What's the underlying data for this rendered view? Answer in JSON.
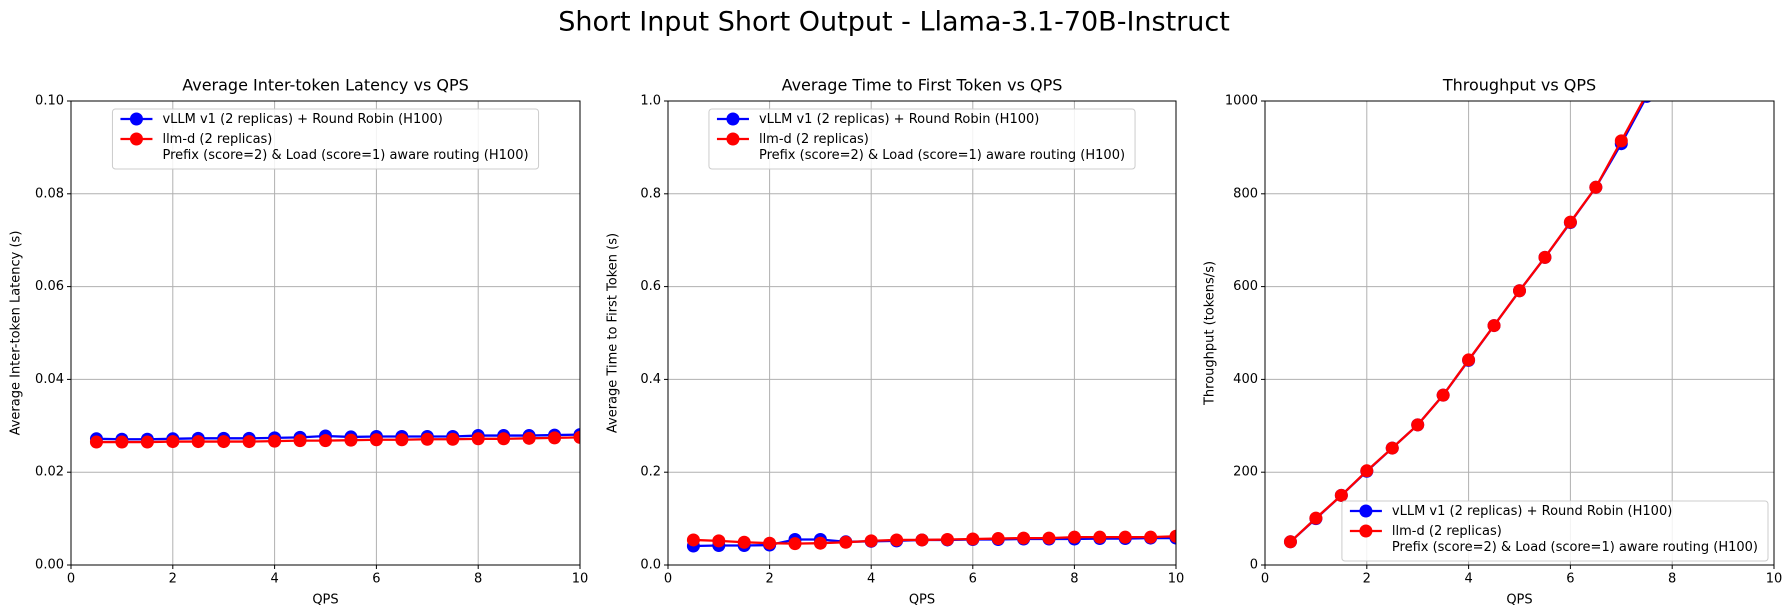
{
  "title": "Short Input Short Output - Llama-3.1-70B-Instruct",
  "chart_data": [
    {
      "type": "line",
      "title": "Average Inter-token Latency vs QPS",
      "x_label": "QPS",
      "y_label": "Average Inter-token Latency (s)",
      "x": [
        0.5,
        1,
        1.5,
        2,
        2.5,
        3,
        3.5,
        4,
        4.5,
        5,
        5.5,
        6,
        6.5,
        7,
        7.5,
        8,
        8.5,
        9,
        9.5,
        10
      ],
      "series": [
        {
          "name": "vLLM v1 (2 replicas) + Round Robin (H100)",
          "color": "#0000ff",
          "values": [
            0.0272,
            0.0271,
            0.0271,
            0.0272,
            0.0273,
            0.0273,
            0.0273,
            0.0274,
            0.0275,
            0.0278,
            0.0276,
            0.0277,
            0.0277,
            0.0277,
            0.0277,
            0.0279,
            0.0279,
            0.0279,
            0.028,
            0.0281
          ]
        },
        {
          "name": "llm-d (2 replicas)\nPrefix (score=2) & Load (score=1) aware routing (H100)",
          "color": "#ff0000",
          "values": [
            0.0265,
            0.0265,
            0.0265,
            0.0266,
            0.0266,
            0.0266,
            0.0266,
            0.0267,
            0.0268,
            0.0268,
            0.0269,
            0.027,
            0.027,
            0.0271,
            0.0271,
            0.0272,
            0.0272,
            0.0273,
            0.0274,
            0.0275
          ]
        }
      ],
      "xlim": [
        0,
        10
      ],
      "ylim": [
        0,
        0.1
      ],
      "xticks": [
        0,
        2,
        4,
        6,
        8,
        10
      ],
      "yticks": [
        {
          "value": 0,
          "label": "0.00"
        },
        0.02,
        0.04,
        0.06,
        0.08,
        {
          "value": 0.1,
          "label": "0.10"
        }
      ],
      "grid": true,
      "legend": "upper center"
    },
    {
      "type": "line",
      "title": "Average Time to First Token vs QPS",
      "x_label": "QPS",
      "y_label": "Average Time to First Token (s)",
      "x": [
        0.5,
        1,
        1.5,
        2,
        2.5,
        3,
        3.5,
        4,
        4.5,
        5,
        5.5,
        6,
        6.5,
        7,
        7.5,
        8,
        8.5,
        9,
        9.5,
        10
      ],
      "series": [
        {
          "name": "vLLM v1 (2 replicas) + Round Robin (H100)",
          "color": "#0000ff",
          "values": [
            0.041,
            0.042,
            0.042,
            0.043,
            0.055,
            0.055,
            0.05,
            0.051,
            0.052,
            0.054,
            0.054,
            0.055,
            0.055,
            0.056,
            0.056,
            0.056,
            0.057,
            0.057,
            0.058,
            0.058
          ]
        },
        {
          "name": "llm-d (2 replicas)\nPrefix (score=2) & Load (score=1) aware routing (H100)",
          "color": "#ff0000",
          "values": [
            0.054,
            0.052,
            0.049,
            0.047,
            0.046,
            0.047,
            0.049,
            0.052,
            0.054,
            0.054,
            0.055,
            0.056,
            0.057,
            0.058,
            0.058,
            0.06,
            0.06,
            0.06,
            0.06,
            0.062
          ]
        }
      ],
      "xlim": [
        0,
        10
      ],
      "ylim": [
        0,
        1
      ],
      "xticks": [
        0,
        2,
        4,
        6,
        8,
        10
      ],
      "yticks": [
        {
          "value": 0,
          "label": "0.0"
        },
        0.2,
        0.4,
        0.6,
        0.8,
        {
          "value": 1,
          "label": "1.0"
        }
      ],
      "grid": true,
      "legend": "upper center"
    },
    {
      "type": "line",
      "title": "Throughput vs QPS",
      "x_label": "QPS",
      "y_label": "Throughput (tokens/s)",
      "x": [
        0.5,
        1,
        1.5,
        2,
        2.5,
        3,
        3.5,
        4,
        4.5,
        5,
        5.5,
        6,
        6.5,
        7,
        7.5
      ],
      "series": [
        {
          "name": "vLLM v1 (2 replicas) + Round Robin (H100)",
          "color": "#0000ff",
          "values": [
            50,
            100,
            150,
            202,
            252,
            302,
            366,
            441,
            516,
            591,
            663,
            738,
            814,
            908,
            1010
          ]
        },
        {
          "name": "llm-d (2 replicas)\nPrefix (score=2) & Load (score=1) aware routing (H100)",
          "color": "#ff0000",
          "values": [
            50,
            101,
            150,
            203,
            252,
            302,
            366,
            442,
            516,
            591,
            663,
            739,
            814,
            914,
            1015
          ]
        }
      ],
      "xlim": [
        0,
        10
      ],
      "ylim": [
        0,
        1000
      ],
      "xticks": [
        0,
        2,
        4,
        6,
        8,
        10
      ],
      "yticks": [
        0,
        200,
        400,
        600,
        800,
        1000
      ],
      "grid": true,
      "legend": "lower right"
    }
  ]
}
